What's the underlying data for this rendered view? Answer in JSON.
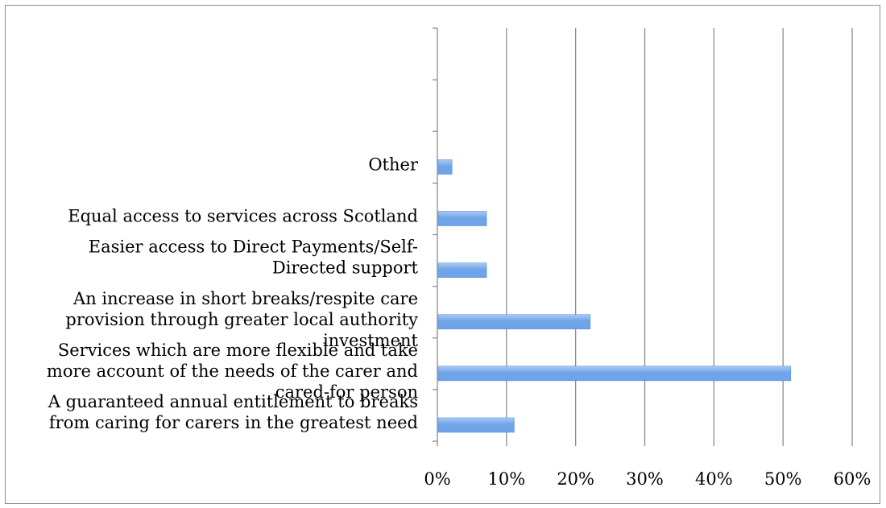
{
  "chart_data": {
    "type": "bar",
    "orientation": "horizontal",
    "title": "",
    "xlabel": "",
    "ylabel": "",
    "categories": [
      [
        "A guaranteed annual entitlement to breaks",
        "from caring for carers in the greatest need"
      ],
      [
        "Services which are more flexible and take",
        "more account of the needs of the carer and",
        "cared-for person"
      ],
      [
        "An increase in short breaks/respite care",
        "provision through greater local authority",
        "investment"
      ],
      [
        "Easier access to Direct Payments/Self-",
        "Directed support"
      ],
      [
        "Equal access to services across Scotland"
      ],
      [
        "Other"
      ],
      [],
      []
    ],
    "values": [
      0.11,
      0.51,
      0.22,
      0.07,
      0.07,
      0.02,
      null,
      null
    ],
    "xlim": [
      0,
      0.6
    ],
    "xticks": [
      "0%",
      "10%",
      "20%",
      "30%",
      "40%",
      "50%",
      "60%"
    ],
    "grid": true,
    "legend": "none",
    "bar_color": "#6fa4e8",
    "bar_color_light": "#a9cbf5",
    "grid_color": "#8c8c8c"
  }
}
